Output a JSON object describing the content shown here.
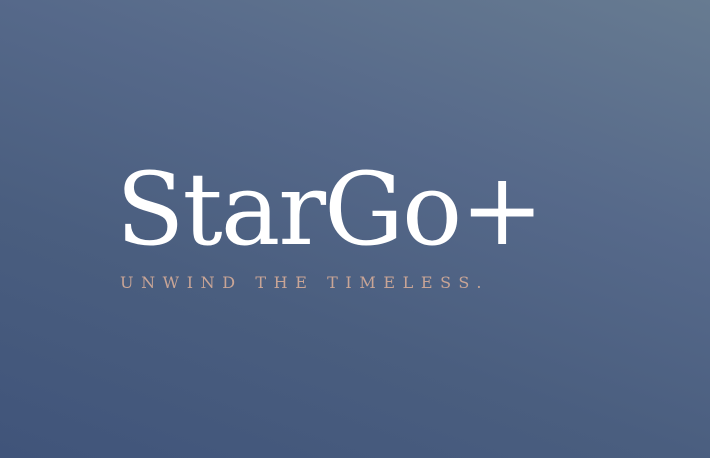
{
  "brand": {
    "name": "StarGo+",
    "tagline": "UNWIND THE TIMELESS."
  },
  "colors": {
    "background_top_right": "#677b91",
    "background_bottom_left": "#40547a",
    "wordmark": "#ffffff",
    "tagline": "#c9a596"
  }
}
